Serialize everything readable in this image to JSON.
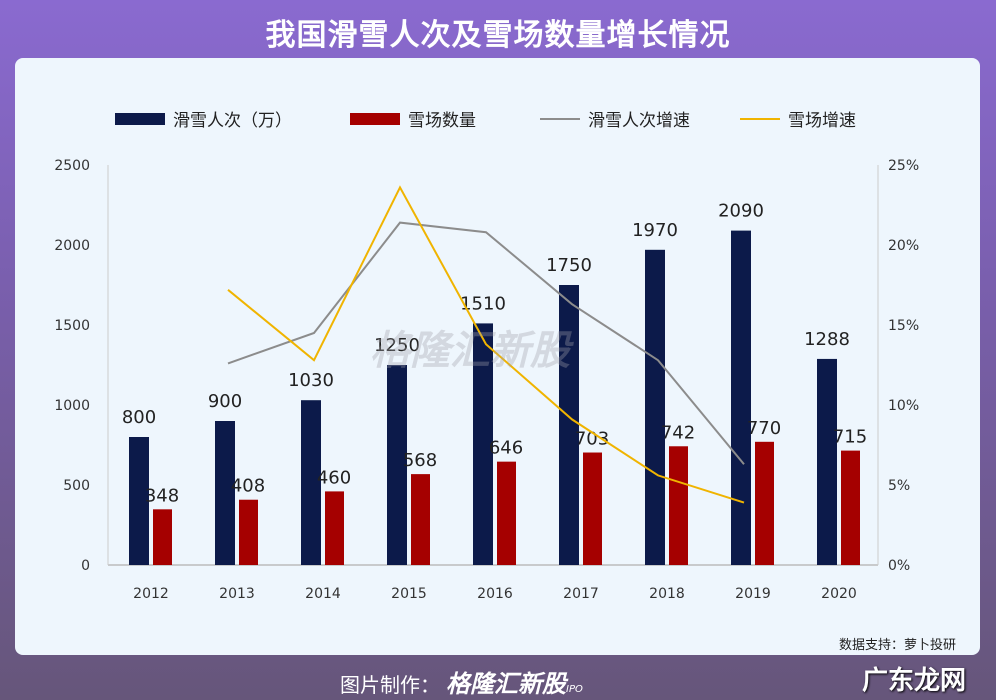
{
  "title": "我国滑雪人次及雪场数量增长情况",
  "source": "数据支持：萝卜投研",
  "footer": {
    "label": "图片制作：",
    "brand": "格隆汇新股",
    "ipo": "IPO",
    "site": "广东龙网"
  },
  "watermark": "格隆汇新股",
  "chart_data": {
    "type": "bar+line",
    "title": "我国滑雪人次及雪场数量增长情况",
    "categories": [
      "2012",
      "2013",
      "2014",
      "2015",
      "2016",
      "2017",
      "2018",
      "2019",
      "2020"
    ],
    "left_axis": {
      "ylim": [
        0,
        2500
      ],
      "ticks": [
        "0",
        "500",
        "1000",
        "1500",
        "2000",
        "2500"
      ]
    },
    "right_axis": {
      "ylim": [
        0,
        25
      ],
      "ticks": [
        "0%",
        "5%",
        "10%",
        "15%",
        "20%",
        "25%"
      ]
    },
    "legend_position": "top",
    "series": [
      {
        "name": "滑雪人次（万）",
        "type": "bar",
        "axis": "left",
        "color": "#0c1a4a",
        "values": [
          800,
          900,
          1030,
          1250,
          1510,
          1750,
          1970,
          2090,
          1288
        ]
      },
      {
        "name": "雪场数量",
        "type": "bar",
        "axis": "left",
        "color": "#a50000",
        "values": [
          348,
          408,
          460,
          568,
          646,
          703,
          742,
          770,
          715
        ]
      },
      {
        "name": "滑雪人次增速",
        "type": "line",
        "axis": "right",
        "color": "#8c8c8c",
        "values": [
          null,
          12.6,
          14.5,
          21.4,
          20.8,
          16.3,
          12.8,
          6.3,
          null
        ]
      },
      {
        "name": "雪场增速",
        "type": "line",
        "axis": "right",
        "color": "#f0b400",
        "values": [
          null,
          17.2,
          12.8,
          23.6,
          13.8,
          9.1,
          5.6,
          3.9,
          null
        ]
      }
    ]
  }
}
